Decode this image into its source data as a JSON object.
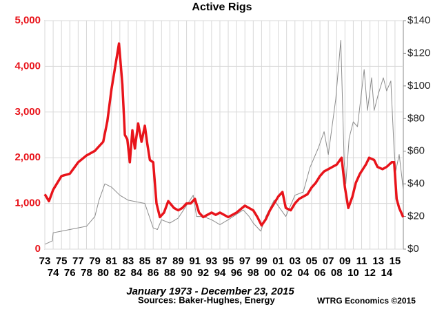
{
  "chart_data": {
    "type": "line",
    "title": "Active Rigs",
    "subtitle": "January 1973 - December 23, 2015",
    "source": "Sources: Baker-Hughes, Energy",
    "credit": "WTRG Economics ©2015",
    "grid": true,
    "xlim": [
      1973,
      2016
    ],
    "xticks": [
      {
        "value": 1973,
        "label": "73"
      },
      {
        "value": 1974,
        "label": "74"
      },
      {
        "value": 1975,
        "label": "75"
      },
      {
        "value": 1976,
        "label": "76"
      },
      {
        "value": 1977,
        "label": "77"
      },
      {
        "value": 1978,
        "label": "78"
      },
      {
        "value": 1979,
        "label": "79"
      },
      {
        "value": 1980,
        "label": "80"
      },
      {
        "value": 1981,
        "label": "81"
      },
      {
        "value": 1982,
        "label": "82"
      },
      {
        "value": 1983,
        "label": "83"
      },
      {
        "value": 1984,
        "label": "84"
      },
      {
        "value": 1985,
        "label": "85"
      },
      {
        "value": 1986,
        "label": "86"
      },
      {
        "value": 1987,
        "label": "87"
      },
      {
        "value": 1988,
        "label": "88"
      },
      {
        "value": 1989,
        "label": "89"
      },
      {
        "value": 1990,
        "label": "90"
      },
      {
        "value": 1991,
        "label": "91"
      },
      {
        "value": 1992,
        "label": "92"
      },
      {
        "value": 1993,
        "label": "93"
      },
      {
        "value": 1994,
        "label": "94"
      },
      {
        "value": 1995,
        "label": "95"
      },
      {
        "value": 1996,
        "label": "96"
      },
      {
        "value": 1997,
        "label": "97"
      },
      {
        "value": 1998,
        "label": "98"
      },
      {
        "value": 1999,
        "label": "99"
      },
      {
        "value": 2000,
        "label": "00"
      },
      {
        "value": 2001,
        "label": "01"
      },
      {
        "value": 2002,
        "label": "02"
      },
      {
        "value": 2003,
        "label": "03"
      },
      {
        "value": 2004,
        "label": "04"
      },
      {
        "value": 2005,
        "label": "05"
      },
      {
        "value": 2006,
        "label": "06"
      },
      {
        "value": 2007,
        "label": "07"
      },
      {
        "value": 2008,
        "label": "08"
      },
      {
        "value": 2009,
        "label": "09"
      },
      {
        "value": 2010,
        "label": "10"
      },
      {
        "value": 2011,
        "label": "11"
      },
      {
        "value": 2012,
        "label": "12"
      },
      {
        "value": 2013,
        "label": "13"
      },
      {
        "value": 2014,
        "label": "14"
      },
      {
        "value": 2015,
        "label": "15"
      }
    ],
    "ylim": [
      0,
      5000
    ],
    "yticks": [
      0,
      {
        "value": 1000,
        "label": "1,000"
      },
      {
        "value": 2000,
        "label": "2,000"
      },
      {
        "value": 3000,
        "label": "3,000"
      },
      {
        "value": 4000,
        "label": "4,000"
      },
      {
        "value": 5000,
        "label": "5,000"
      }
    ],
    "y2lim": [
      0,
      140
    ],
    "y2ticks": [
      {
        "value": 0,
        "label": "$0"
      },
      {
        "value": 20,
        "label": "$20"
      },
      {
        "value": 40,
        "label": "$40"
      },
      {
        "value": 60,
        "label": "$60"
      },
      {
        "value": 80,
        "label": "$80"
      },
      {
        "value": 100,
        "label": "$100"
      },
      {
        "value": 120,
        "label": "$120"
      },
      {
        "value": 140,
        "label": "$140"
      }
    ],
    "series": [
      {
        "color": "#e8141b",
        "x": [
          1973,
          1973.5,
          1974,
          1975,
          1976,
          1977,
          1978,
          1979,
          1980,
          1980.5,
          1981,
          1981.9,
          1982.3,
          1982.6,
          1982.9,
          1983.2,
          1983.5,
          1983.8,
          1984.2,
          1984.6,
          1985,
          1985.3,
          1985.6,
          1986,
          1986.4,
          1986.8,
          1987.3,
          1987.8,
          1988.5,
          1989,
          1989.5,
          1990,
          1990.5,
          1991,
          1991.5,
          1992,
          1992.5,
          1993,
          1993.5,
          1994,
          1995,
          1996,
          1997,
          1998,
          1998.5,
          1999,
          1999.5,
          2000,
          2000.5,
          2001,
          2001.5,
          2001.9,
          2002.5,
          2003,
          2003.5,
          2004,
          2004.5,
          2005,
          2005.5,
          2006,
          2006.5,
          2007,
          2007.5,
          2008,
          2008.6,
          2009,
          2009.4,
          2009.9,
          2010.3,
          2010.8,
          2011.5,
          2011.9,
          2012.5,
          2012.9,
          2013.5,
          2014,
          2014.6,
          2014.9,
          2015.2,
          2015.5,
          2015.98
        ],
        "values": [
          1200,
          1050,
          1300,
          1600,
          1650,
          1900,
          2050,
          2150,
          2350,
          2800,
          3500,
          4500,
          3600,
          2500,
          2400,
          1900,
          2600,
          2200,
          2750,
          2350,
          2700,
          2300,
          1950,
          1900,
          1000,
          700,
          800,
          1050,
          900,
          850,
          900,
          1000,
          1000,
          1100,
          800,
          700,
          750,
          800,
          750,
          800,
          700,
          800,
          950,
          850,
          700,
          520,
          650,
          850,
          1000,
          1150,
          1250,
          900,
          850,
          1000,
          1100,
          1150,
          1200,
          1350,
          1450,
          1600,
          1700,
          1750,
          1800,
          1850,
          2000,
          1350,
          900,
          1150,
          1450,
          1650,
          1850,
          2000,
          1950,
          1800,
          1750,
          1800,
          1900,
          1900,
          1100,
          900,
          700
        ]
      },
      {
        "color": "#8c8c8c",
        "axis": "y2",
        "x": [
          1973,
          1973.9,
          1974,
          1976,
          1978,
          1979,
          1979.5,
          1980.2,
          1981,
          1982,
          1983,
          1985,
          1986,
          1986.5,
          1987,
          1988,
          1989,
          1990.8,
          1991.2,
          1992,
          1993,
          1994,
          1995,
          1996.8,
          1997.5,
          1998,
          1998.9,
          1999.5,
          2000.5,
          2001.9,
          2002.5,
          2003,
          2004,
          2004.8,
          2005.8,
          2006.5,
          2007,
          2007.9,
          2008.5,
          2008.9,
          2009.1,
          2009.5,
          2010,
          2010.5,
          2011.3,
          2011.7,
          2012.2,
          2012.5,
          2013,
          2013.6,
          2014,
          2014.5,
          2014.9,
          2015.1,
          2015.5,
          2015.8,
          2015.98
        ],
        "values": [
          3,
          5,
          10,
          12,
          14,
          20,
          30,
          40,
          38,
          33,
          30,
          28,
          13,
          12,
          18,
          16,
          19,
          33,
          20,
          20,
          18,
          15,
          18,
          24,
          20,
          16,
          11,
          20,
          30,
          20,
          27,
          33,
          35,
          50,
          62,
          72,
          58,
          92,
          128,
          55,
          40,
          68,
          78,
          75,
          110,
          85,
          105,
          85,
          95,
          105,
          97,
          103,
          60,
          48,
          58,
          45,
          37
        ]
      }
    ]
  }
}
